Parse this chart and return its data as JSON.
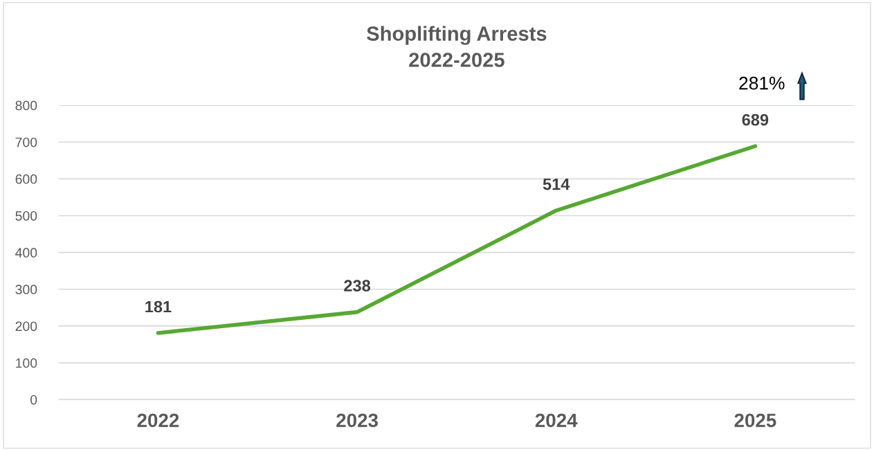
{
  "chart_data": {
    "type": "line",
    "title": "Shoplifting Arrests\n2022-2025",
    "categories": [
      "2022",
      "2023",
      "2024",
      "2025"
    ],
    "series": [
      {
        "color": "#57a833",
        "values": [
          181,
          238,
          514,
          689
        ]
      }
    ],
    "ylim": [
      0,
      800
    ],
    "yticks": [
      0,
      100,
      200,
      300,
      400,
      500,
      600,
      700,
      800
    ],
    "grid": "y",
    "data_labels": true,
    "marker": "none",
    "line_style": "solid",
    "annotations": [
      "281%"
    ]
  }
}
